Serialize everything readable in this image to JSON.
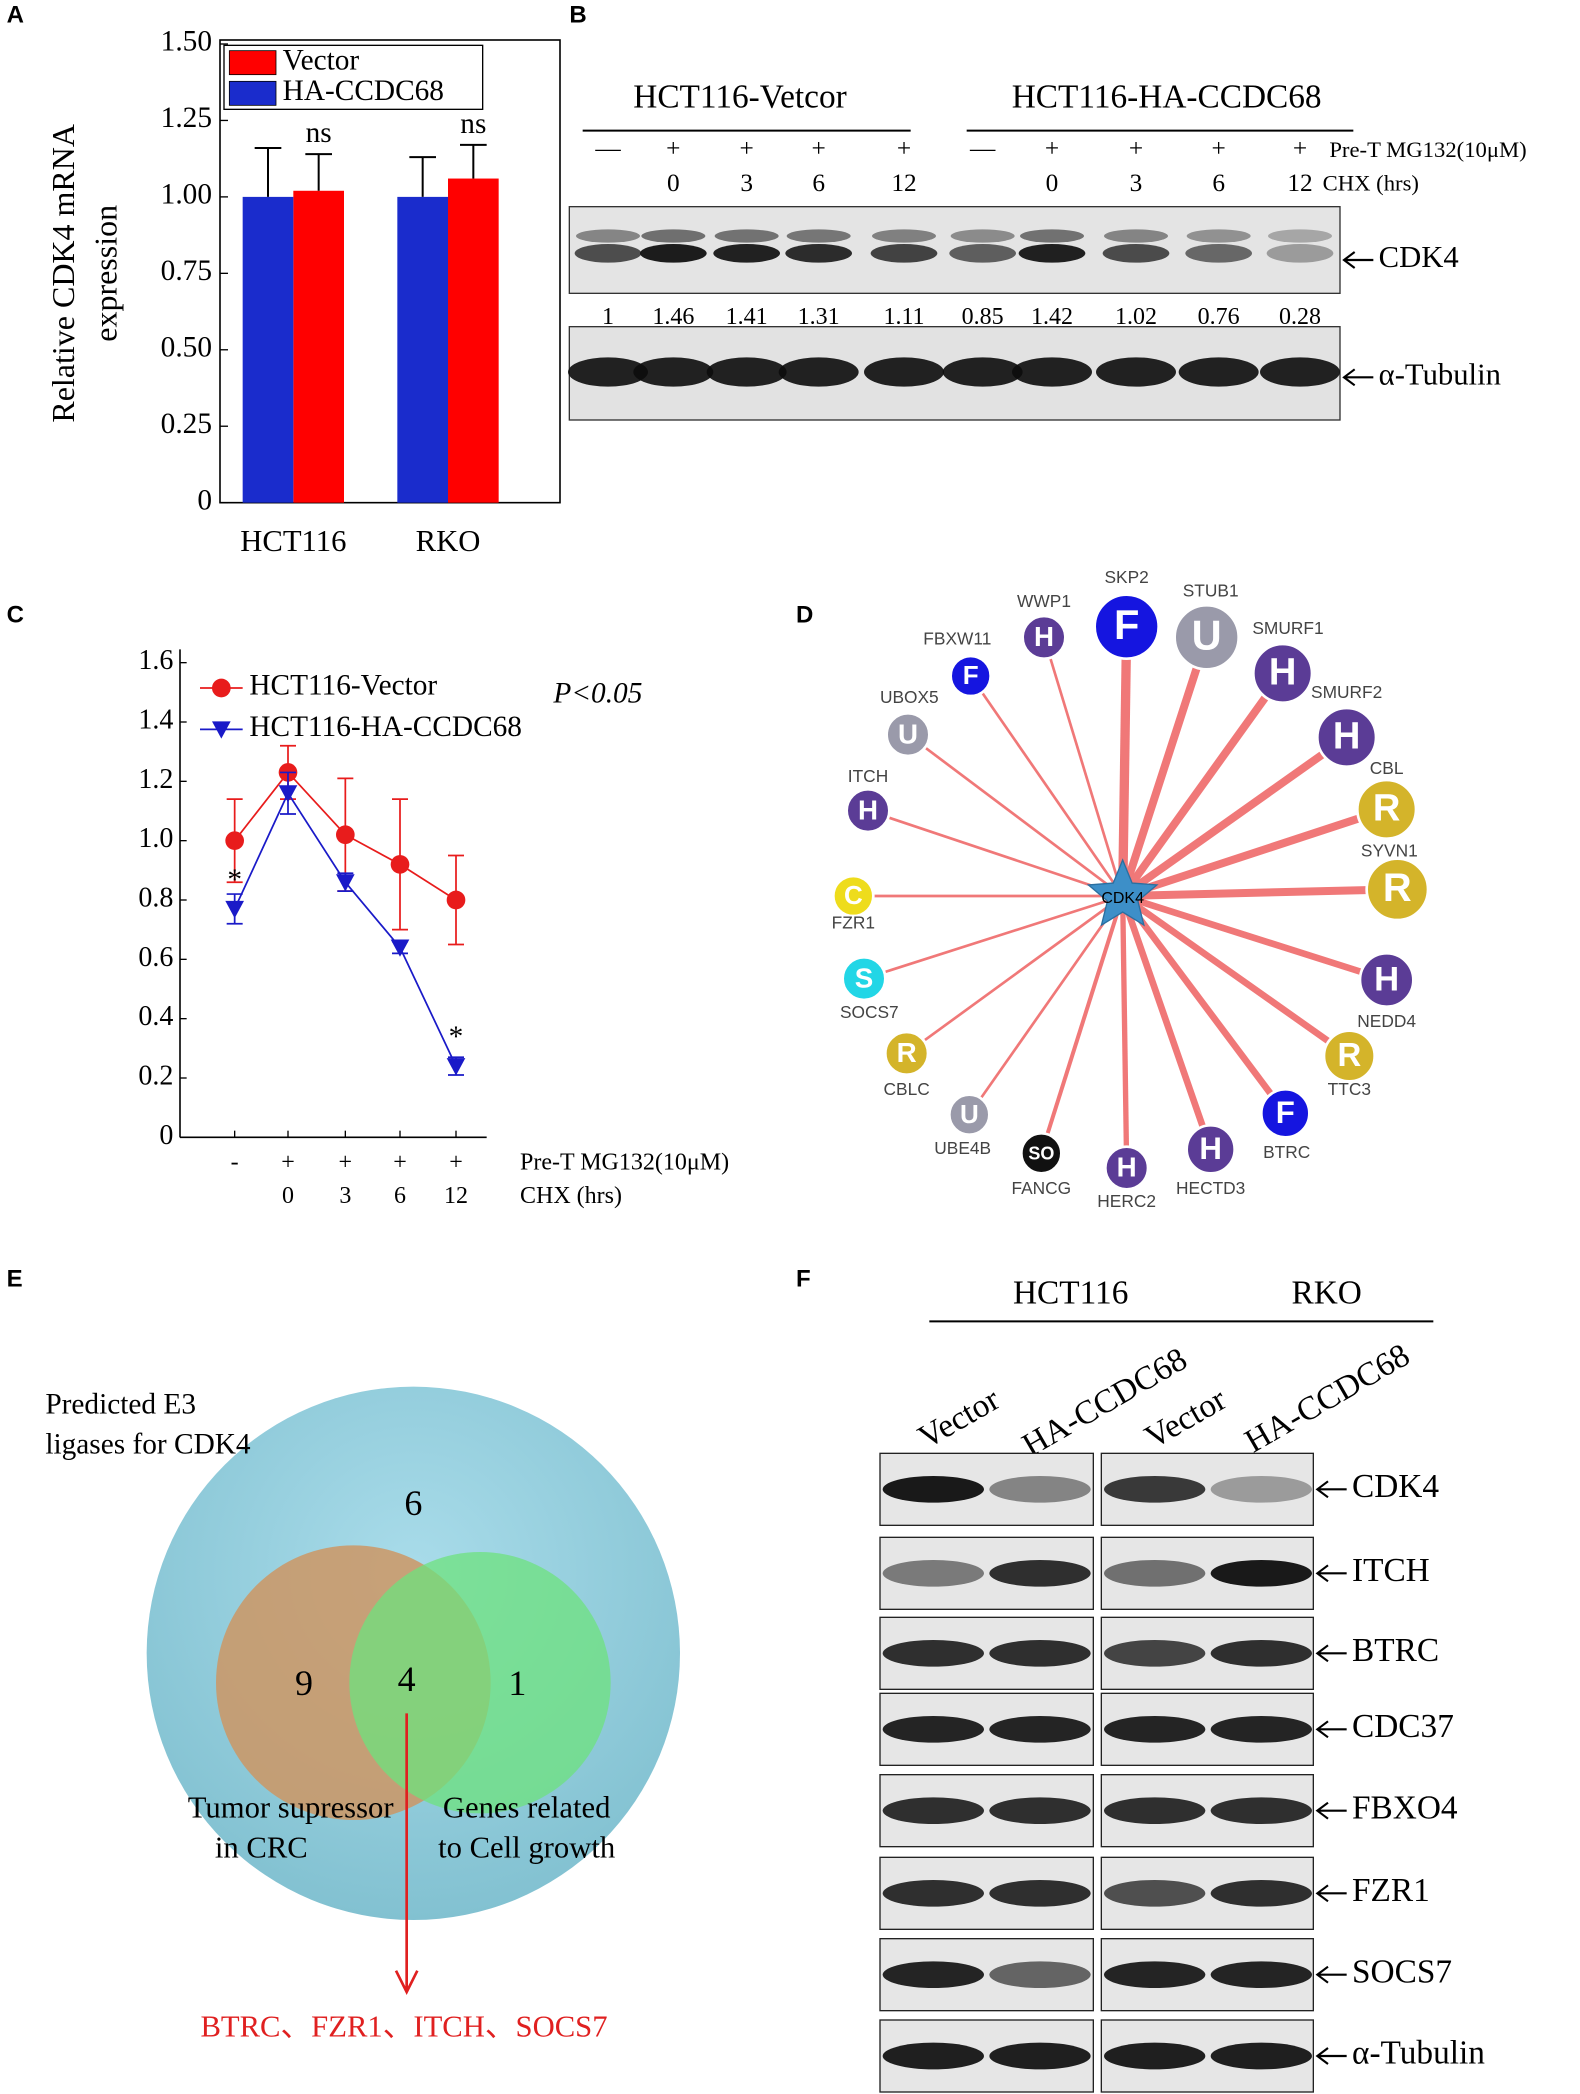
{
  "panel_labels": [
    "A",
    "B",
    "C",
    "D",
    "E",
    "F"
  ],
  "chart_data": [
    {
      "type": "bar",
      "ylabel": [
        "Relative CDK4  mRNA",
        "expression"
      ],
      "categories": [
        "HCT116",
        "RKO"
      ],
      "series": [
        {
          "name": "Vector",
          "color": "#ff0000",
          "values": [
            1.02,
            1.06
          ],
          "errors": [
            0.12,
            0.11
          ]
        },
        {
          "name": "HA-CCDC68",
          "color": "#1a2ccc",
          "values": [
            1.0,
            1.0
          ],
          "errors": [
            0.16,
            0.13
          ]
        }
      ],
      "annotations": [
        "ns",
        "ns"
      ],
      "ylim": [
        0,
        1.5
      ],
      "yticks": [
        0,
        0.25,
        {
          "value": 0.5,
          "label": "0.50"
        },
        0.75,
        {
          "value": 1,
          "label": "1.00"
        },
        1.25,
        {
          "value": 1.5,
          "label": "1.50"
        }
      ]
    },
    {
      "type": "line",
      "categories": [
        "-",
        "+",
        "+",
        "+",
        "+"
      ],
      "categories2": [
        null,
        "0",
        "3",
        "6",
        "12"
      ],
      "category_row_labels": [
        "Pre-T MG132(10μM)",
        "CHX (hrs)"
      ],
      "series": [
        {
          "name": "HCT116-Vector",
          "color": "#e81c1c",
          "marker": "circle",
          "values": [
            1.0,
            1.23,
            1.02,
            0.92,
            0.8
          ],
          "errors": [
            0.14,
            0.09,
            0.19,
            0.22,
            0.15
          ],
          "annotations": [
            null,
            null,
            null,
            null,
            null
          ]
        },
        {
          "name": "HCT116-HA-CCDC68",
          "color": "#1a1ac8",
          "marker": "triangle-down",
          "values": [
            0.77,
            1.16,
            0.86,
            0.64,
            0.24
          ],
          "errors": [
            0.05,
            0.07,
            0.03,
            0.02,
            0.03
          ],
          "annotations": [
            "*",
            null,
            null,
            null,
            "*"
          ]
        }
      ],
      "pvalue": "P<0.05",
      "ylim": [
        0,
        1.6
      ],
      "yticks": [
        0,
        0.2,
        0.4,
        0.6,
        0.8,
        {
          "value": 1,
          "label": "1.0"
        },
        1.2,
        1.4,
        1.6
      ]
    }
  ],
  "blot_b": {
    "groups": [
      "HCT116-Vetcor",
      "HCT116-HA-CCDC68"
    ],
    "row1": [
      "—",
      "+",
      "+",
      "+",
      "+",
      "—",
      "+",
      "+",
      "+",
      "+"
    ],
    "row1_label": "Pre-T MG132(10μM)",
    "row2": [
      null,
      "0",
      "3",
      "6",
      "12",
      null,
      "0",
      "3",
      "6",
      "12"
    ],
    "row2_label": "CHX (hrs)",
    "quantification": [
      1,
      1.46,
      1.41,
      1.31,
      1.11,
      0.85,
      1.42,
      1.02,
      0.76,
      0.28
    ],
    "bands": [
      "CDK4",
      "α-Tubulin"
    ]
  },
  "network_d": {
    "center": "CDK4",
    "nodes": [
      {
        "label": "WWP1",
        "letter": "H",
        "color": "#5b3c96"
      },
      {
        "label": "SKP2",
        "letter": "F",
        "color": "#1515e0"
      },
      {
        "label": "STUB1",
        "letter": "U",
        "color": "#9a9aaa"
      },
      {
        "label": "SMURF1",
        "letter": "H",
        "color": "#5b3c96"
      },
      {
        "label": "SMURF2",
        "letter": "H",
        "color": "#5b3c96"
      },
      {
        "label": "CBL",
        "letter": "R",
        "color": "#d4b42a"
      },
      {
        "label": "SYVN1",
        "letter": "R",
        "color": "#d4b42a"
      },
      {
        "label": "NEDD4",
        "letter": "H",
        "color": "#5b3c96"
      },
      {
        "label": "TTC3",
        "letter": "R",
        "color": "#d4b42a"
      },
      {
        "label": "BTRC",
        "letter": "F",
        "color": "#1515e0"
      },
      {
        "label": "HECTD3",
        "letter": "H",
        "color": "#5b3c96"
      },
      {
        "label": "HERC2",
        "letter": "H",
        "color": "#5b3c96"
      },
      {
        "label": "FANCG",
        "letter": "SO",
        "color": "#111111"
      },
      {
        "label": "UBE4B",
        "letter": "U",
        "color": "#9a9aaa"
      },
      {
        "label": "CBLC",
        "letter": "R",
        "color": "#d4b42a"
      },
      {
        "label": "SOCS7",
        "letter": "S",
        "color": "#22d6e6"
      },
      {
        "label": "FZR1",
        "letter": "C",
        "color": "#eedc1c"
      },
      {
        "label": "ITCH",
        "letter": "H",
        "color": "#5b3c96"
      },
      {
        "label": "UBOX5",
        "letter": "U",
        "color": "#9a9aaa"
      },
      {
        "label": "FBXW11",
        "letter": "F",
        "color": "#1515e0"
      }
    ]
  },
  "venn_e": {
    "title": [
      "Predicted E3",
      "ligases for CDK4"
    ],
    "counts": {
      "outer": 6,
      "left": 9,
      "both": 4,
      "right": 1
    },
    "left_label": [
      "Tumor supressor",
      "in CRC"
    ],
    "right_label": [
      "Genes related",
      "to Cell growth"
    ],
    "result": "BTRC、FZR1、ITCH、SOCS7"
  },
  "blot_f": {
    "cell_lines": [
      "HCT116",
      "RKO"
    ],
    "lanes": [
      "Vector",
      "HA-CCDC68",
      "Vector",
      "HA-CCDC68"
    ],
    "rows": [
      "CDK4",
      "ITCH",
      "BTRC",
      "CDC37",
      "FBXO4",
      "FZR1",
      "SOCS7",
      "α-Tubulin"
    ]
  }
}
